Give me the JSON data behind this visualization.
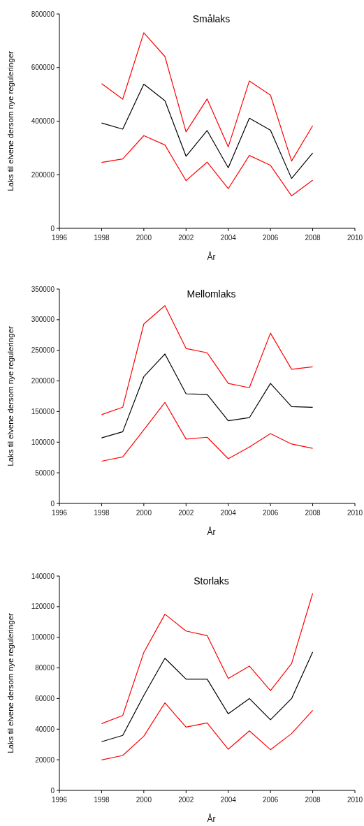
{
  "chart_data": [
    {
      "type": "line",
      "title": "Smålaks",
      "xlabel": "År",
      "ylabel": "Laks til elvene dersom nye reguleringer",
      "x": [
        1998,
        1999,
        2000,
        2001,
        2002,
        2003,
        2004,
        2005,
        2006,
        2007,
        2008
      ],
      "xlim": [
        1996,
        2010
      ],
      "xticks": [
        1996,
        1998,
        2000,
        2002,
        2004,
        2006,
        2008,
        2010
      ],
      "ylim": [
        0,
        800000
      ],
      "yticks": [
        0,
        200000,
        400000,
        600000,
        800000
      ],
      "grid": false,
      "marker": "none",
      "line_style": "solid",
      "series": [
        {
          "color": "#ff0000",
          "values": [
            540000,
            482000,
            730000,
            641000,
            360000,
            483000,
            304000,
            550000,
            497000,
            251000,
            383000
          ]
        },
        {
          "color": "#000000",
          "values": [
            393000,
            370000,
            538000,
            476000,
            269000,
            365000,
            226000,
            411000,
            366000,
            186000,
            281000
          ]
        },
        {
          "color": "#ff0000",
          "values": [
            246000,
            259000,
            346000,
            311000,
            178000,
            247000,
            148000,
            272000,
            235000,
            121000,
            180000
          ]
        }
      ]
    },
    {
      "type": "line",
      "title": "Mellomlaks",
      "xlabel": "År",
      "ylabel": "Laks til elvene dersom nye reguleringer",
      "x": [
        1998,
        1999,
        2000,
        2001,
        2002,
        2003,
        2004,
        2005,
        2006,
        2007,
        2008
      ],
      "xlim": [
        1996,
        2010
      ],
      "xticks": [
        1996,
        1998,
        2000,
        2002,
        2004,
        2006,
        2008,
        2010
      ],
      "ylim": [
        0,
        350000
      ],
      "yticks": [
        0,
        50000,
        100000,
        150000,
        200000,
        250000,
        300000,
        350000
      ],
      "grid": false,
      "marker": "none",
      "line_style": "solid",
      "series": [
        {
          "color": "#ff0000",
          "values": [
            145000,
            157000,
            293000,
            323000,
            253000,
            246000,
            196000,
            189000,
            278000,
            219000,
            223000
          ]
        },
        {
          "color": "#000000",
          "values": [
            107000,
            117000,
            207000,
            244000,
            179000,
            178000,
            135000,
            140000,
            196000,
            158000,
            157000
          ]
        },
        {
          "color": "#ff0000",
          "values": [
            69000,
            76000,
            120000,
            165000,
            105000,
            108000,
            73000,
            92000,
            114000,
            97000,
            90000
          ]
        }
      ]
    },
    {
      "type": "line",
      "title": "Storlaks",
      "xlabel": "År",
      "ylabel": "Laks til elvene dersom nye reguleringer",
      "x": [
        1998,
        1999,
        2000,
        2001,
        2002,
        2003,
        2004,
        2005,
        2006,
        2007,
        2008
      ],
      "xlim": [
        1996,
        2010
      ],
      "xticks": [
        1996,
        1998,
        2000,
        2002,
        2004,
        2006,
        2008,
        2010
      ],
      "ylim": [
        0,
        140000
      ],
      "yticks": [
        0,
        20000,
        40000,
        60000,
        80000,
        100000,
        120000,
        140000
      ],
      "grid": false,
      "marker": "none",
      "line_style": "solid",
      "series": [
        {
          "color": "#ff0000",
          "values": [
            43600,
            48900,
            90100,
            115100,
            104100,
            101100,
            73100,
            81200,
            65200,
            82800,
            128700
          ]
        },
        {
          "color": "#000000",
          "values": [
            31800,
            35900,
            62000,
            86300,
            72700,
            72700,
            50000,
            60000,
            46100,
            60000,
            90400
          ]
        },
        {
          "color": "#ff0000",
          "values": [
            19900,
            22800,
            35400,
            57200,
            41300,
            44100,
            26900,
            38900,
            26600,
            37100,
            52300
          ]
        }
      ]
    }
  ]
}
